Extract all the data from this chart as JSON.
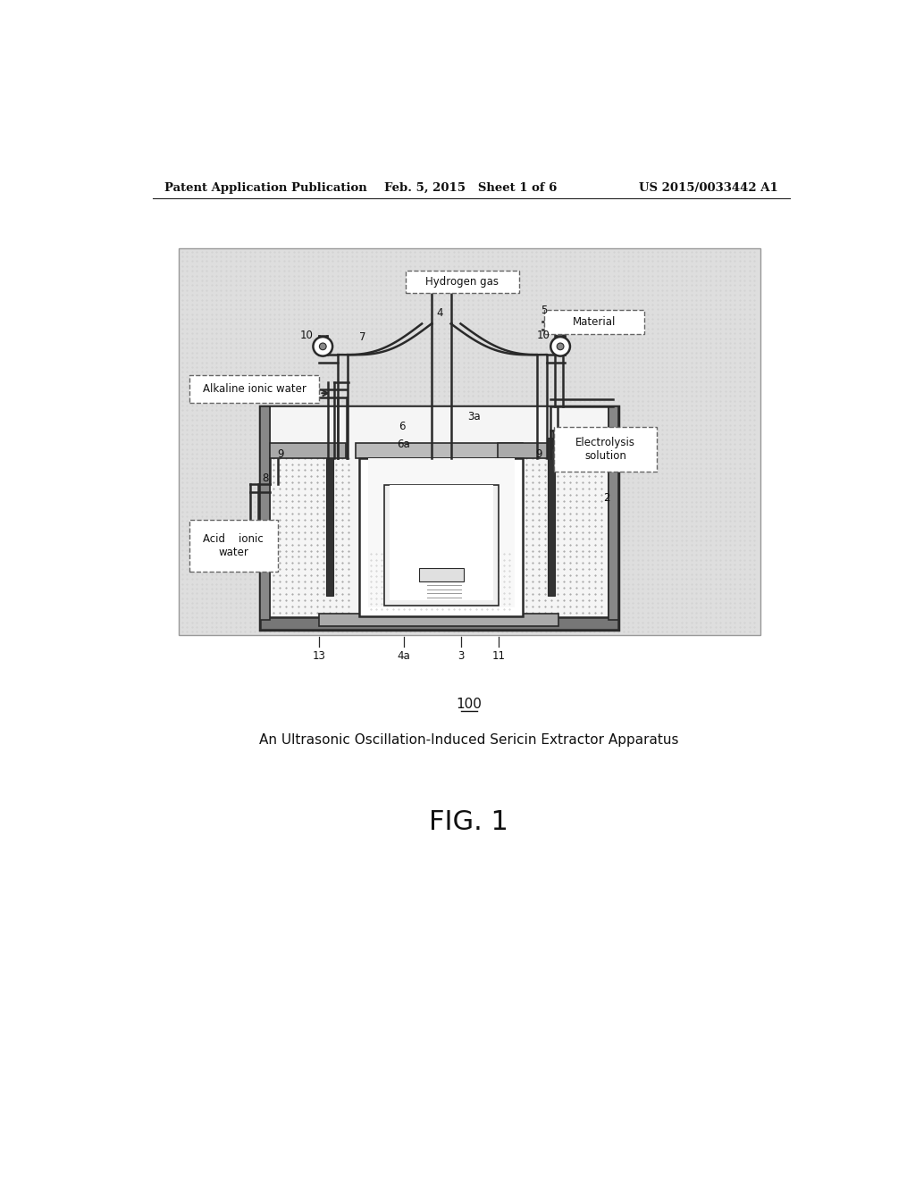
{
  "bg_color": "#ffffff",
  "diagram_bg": "#e0e0e0",
  "header_left": "Patent Application Publication",
  "header_mid": "Feb. 5, 2015   Sheet 1 of 6",
  "header_right": "US 2015/0033442 A1",
  "figure_label": "FIG. 1",
  "ref_number": "100",
  "caption": "An Ultrasonic Oscillation-Induced Sericin Extractor Apparatus",
  "dark": "#2a2a2a",
  "gray_dark": "#555555",
  "gray_mid": "#888888",
  "gray_light": "#bbbbbb",
  "white": "#ffffff"
}
